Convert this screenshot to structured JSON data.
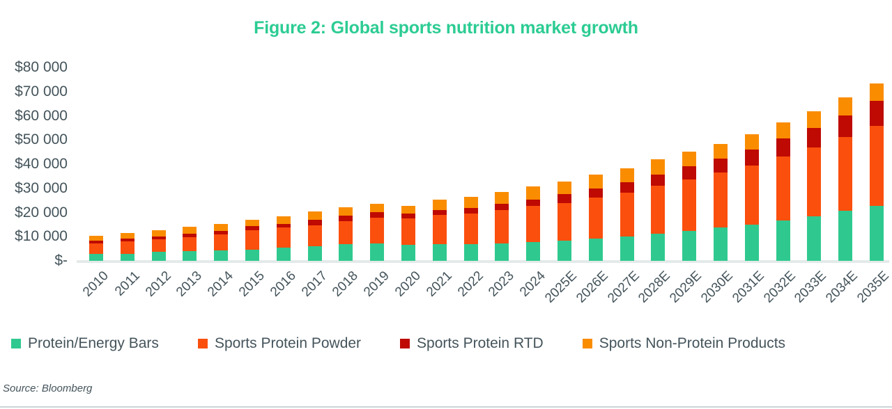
{
  "figure": {
    "title": "Figure 2: Global sports nutrition market growth",
    "source": "Source: Bloomberg"
  },
  "colors": {
    "title_text": "#2CCC93",
    "axis_text": "#44545B",
    "baseline": "#E4EAEA",
    "bottom_rule": "#CBD5D8"
  },
  "chart_data": {
    "type": "bar",
    "stacked": true,
    "title": "Figure 2: Global sports nutrition market growth",
    "xlabel": "",
    "ylabel": "",
    "ylim": [
      0,
      80000
    ],
    "ytick_step": 10000,
    "ytick_labels": [
      "$-",
      "$10 000",
      "$20 000",
      "$30 000",
      "$40 000",
      "$50 000",
      "$60 000",
      "$70 000",
      "$80 000"
    ],
    "grid": false,
    "legend_position": "bottom",
    "categories": [
      "2010",
      "2011",
      "2012",
      "2013",
      "2014",
      "2015",
      "2016",
      "2017",
      "2018",
      "2019",
      "2020",
      "2021",
      "2022",
      "2023",
      "2024",
      "2025E",
      "2026E",
      "2027E",
      "2028E",
      "2029E",
      "2030E",
      "2031E",
      "2032E",
      "2033E",
      "2034E",
      "2035E"
    ],
    "series": [
      {
        "name": "Protein/Energy Bars",
        "color": "#2FC98F",
        "values": [
          2800,
          3000,
          3700,
          3900,
          4400,
          4700,
          5400,
          5900,
          6800,
          7100,
          6500,
          6800,
          7000,
          7300,
          7800,
          8300,
          9300,
          10000,
          11200,
          12400,
          13700,
          15000,
          16800,
          18400,
          20600,
          22600
        ]
      },
      {
        "name": "Sports Protein Powder",
        "color": "#FB4F0E",
        "values": [
          4300,
          5100,
          5100,
          5900,
          6600,
          8000,
          8300,
          8800,
          9700,
          10600,
          11000,
          12100,
          12700,
          13800,
          14800,
          15700,
          16800,
          18300,
          19800,
          21300,
          22900,
          24500,
          26300,
          28500,
          30500,
          33300
        ]
      },
      {
        "name": "Sports Protein RTD",
        "color": "#BE0A02",
        "values": [
          1200,
          1100,
          1200,
          1400,
          1400,
          1600,
          1600,
          2200,
          2200,
          2400,
          2200,
          2200,
          2100,
          2400,
          2600,
          3500,
          3700,
          4100,
          4600,
          5300,
          5800,
          6600,
          7500,
          8200,
          9100,
          10300
        ]
      },
      {
        "name": "Sports Non-Protein Products",
        "color": "#FA8C00",
        "values": [
          2200,
          2200,
          2600,
          2900,
          2900,
          2700,
          3200,
          3400,
          3400,
          3400,
          2900,
          4100,
          4600,
          5100,
          5600,
          5400,
          5800,
          5800,
          6300,
          6100,
          5900,
          6400,
          6700,
          6900,
          7300,
          7100
        ]
      }
    ]
  }
}
